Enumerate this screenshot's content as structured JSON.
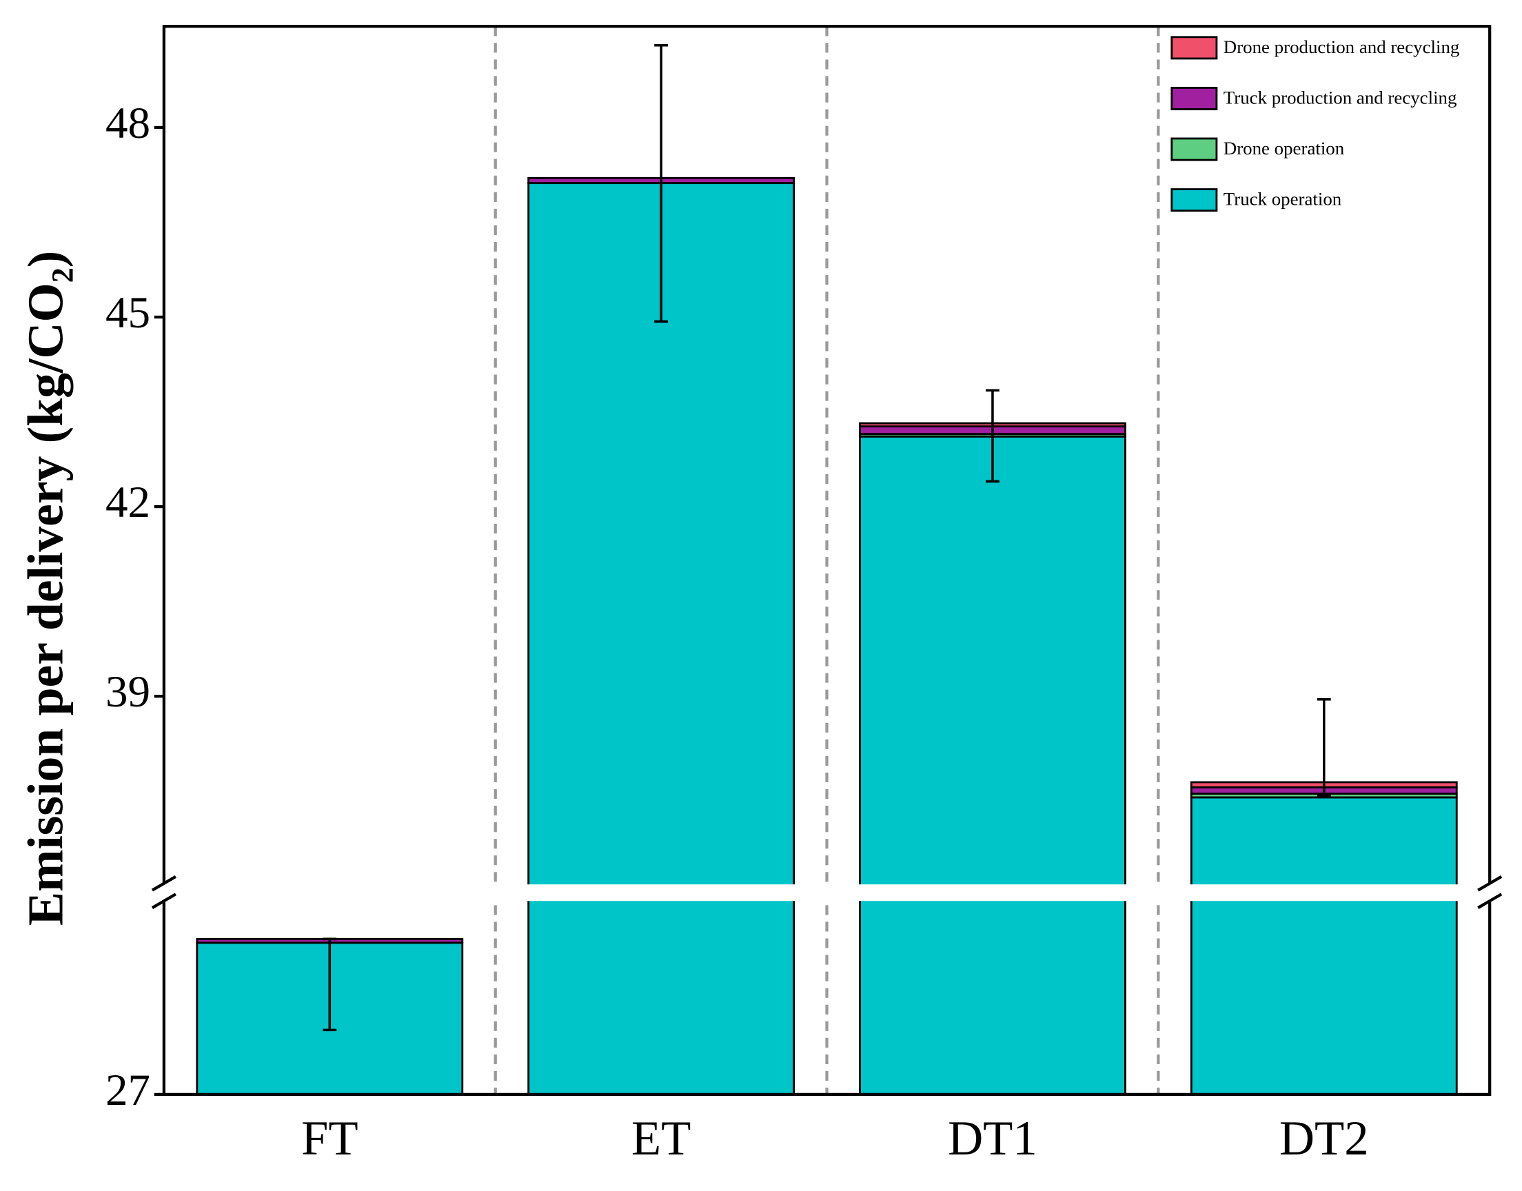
{
  "chart_data": {
    "type": "stacked_bar",
    "ylabel": "Emission per delivery (kg/CO₂)",
    "categories": [
      "FT",
      "ET",
      "DT1",
      "DT2"
    ],
    "series": [
      {
        "name": "Truck operation",
        "color": "#00c5c8",
        "values": [
          29.4,
          47.12,
          43.11,
          37.4
        ]
      },
      {
        "name": "Drone operation",
        "color": "#5ecf82",
        "values": [
          0,
          0,
          0.04,
          0.06
        ]
      },
      {
        "name": "Truck production and recycling",
        "color": "#a020a0",
        "values": [
          0.06,
          0.08,
          0.12,
          0.1
        ]
      },
      {
        "name": "Drone production and recycling",
        "color": "#f0506a",
        "values": [
          0,
          0,
          0.05,
          0.08
        ]
      }
    ],
    "error_minus": [
      1.44,
      2.27,
      0.92,
      0.21
    ],
    "error_plus": [
      0.0,
      2.1,
      0.52,
      1.31
    ],
    "ylim": [
      27,
      49.6
    ],
    "axis_break": [
      30.2,
      35.9
    ],
    "yticks": [
      27,
      39,
      42,
      45,
      48
    ],
    "legend": "upper right"
  }
}
